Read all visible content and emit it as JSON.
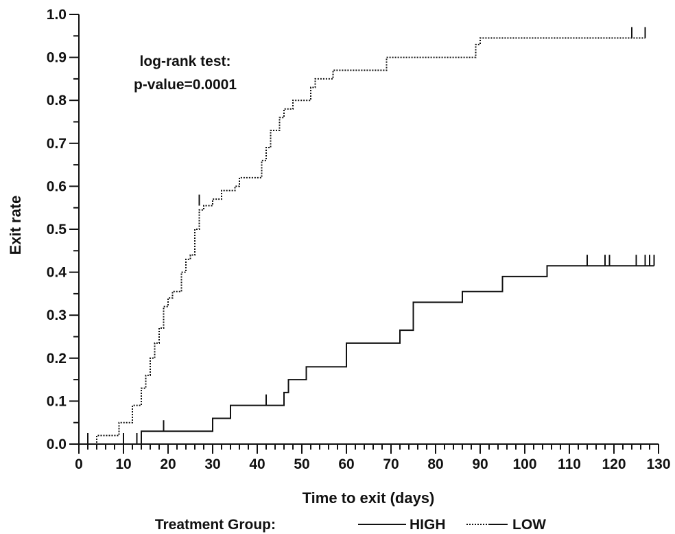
{
  "chart_data": {
    "type": "line",
    "xlabel": "Time to exit (days)",
    "ylabel": "Exit rate",
    "xlim": [
      0,
      130
    ],
    "ylim": [
      0,
      1.0
    ],
    "x_ticks": [
      "0",
      "10",
      "20",
      "30",
      "40",
      "50",
      "60",
      "70",
      "80",
      "90",
      "100",
      "110",
      "120",
      "130"
    ],
    "y_ticks": [
      "0.0",
      "0.1",
      "0.2",
      "0.3",
      "0.4",
      "0.5",
      "0.6",
      "0.7",
      "0.8",
      "0.9",
      "1.0"
    ],
    "annotation": [
      "log-rank test:",
      "p-value=0.0001"
    ],
    "legend": {
      "title": "Treatment Group:",
      "placement": "bottom"
    },
    "series": [
      {
        "name": "HIGH",
        "style": "solid",
        "color": "#111111",
        "steps": [
          [
            0,
            0.0
          ],
          [
            14,
            0.03
          ],
          [
            30,
            0.06
          ],
          [
            34,
            0.09
          ],
          [
            46,
            0.12
          ],
          [
            47,
            0.15
          ],
          [
            51,
            0.18
          ],
          [
            60,
            0.235
          ],
          [
            72,
            0.265
          ],
          [
            75,
            0.33
          ],
          [
            86,
            0.355
          ],
          [
            95,
            0.39
          ],
          [
            105,
            0.415
          ],
          [
            129,
            0.415
          ]
        ],
        "censored": [
          [
            2,
            0.0
          ],
          [
            10,
            0.0
          ],
          [
            13,
            0.0
          ],
          [
            19,
            0.03
          ],
          [
            42,
            0.09
          ],
          [
            114,
            0.415
          ],
          [
            118,
            0.415
          ],
          [
            119,
            0.415
          ],
          [
            125,
            0.415
          ],
          [
            127,
            0.415
          ],
          [
            128,
            0.415
          ],
          [
            129,
            0.415
          ]
        ]
      },
      {
        "name": "LOW",
        "style": "dotted",
        "color": "#111111",
        "steps": [
          [
            0,
            0.0
          ],
          [
            4,
            0.02
          ],
          [
            9,
            0.05
          ],
          [
            12,
            0.09
          ],
          [
            14,
            0.13
          ],
          [
            15,
            0.16
          ],
          [
            16,
            0.2
          ],
          [
            17,
            0.235
          ],
          [
            18,
            0.27
          ],
          [
            19,
            0.32
          ],
          [
            20,
            0.34
          ],
          [
            21,
            0.355
          ],
          [
            23,
            0.4
          ],
          [
            24,
            0.43
          ],
          [
            25,
            0.44
          ],
          [
            26,
            0.5
          ],
          [
            27,
            0.545
          ],
          [
            28,
            0.555
          ],
          [
            30,
            0.57
          ],
          [
            32,
            0.59
          ],
          [
            35,
            0.6
          ],
          [
            36,
            0.62
          ],
          [
            41,
            0.66
          ],
          [
            42,
            0.69
          ],
          [
            43,
            0.73
          ],
          [
            45,
            0.76
          ],
          [
            46,
            0.78
          ],
          [
            48,
            0.8
          ],
          [
            52,
            0.83
          ],
          [
            53,
            0.85
          ],
          [
            57,
            0.87
          ],
          [
            69,
            0.9
          ],
          [
            89,
            0.93
          ],
          [
            90,
            0.945
          ],
          [
            127,
            0.945
          ]
        ],
        "censored": [
          [
            27,
            0.555
          ],
          [
            124,
            0.945
          ],
          [
            127,
            0.945
          ]
        ]
      }
    ]
  }
}
